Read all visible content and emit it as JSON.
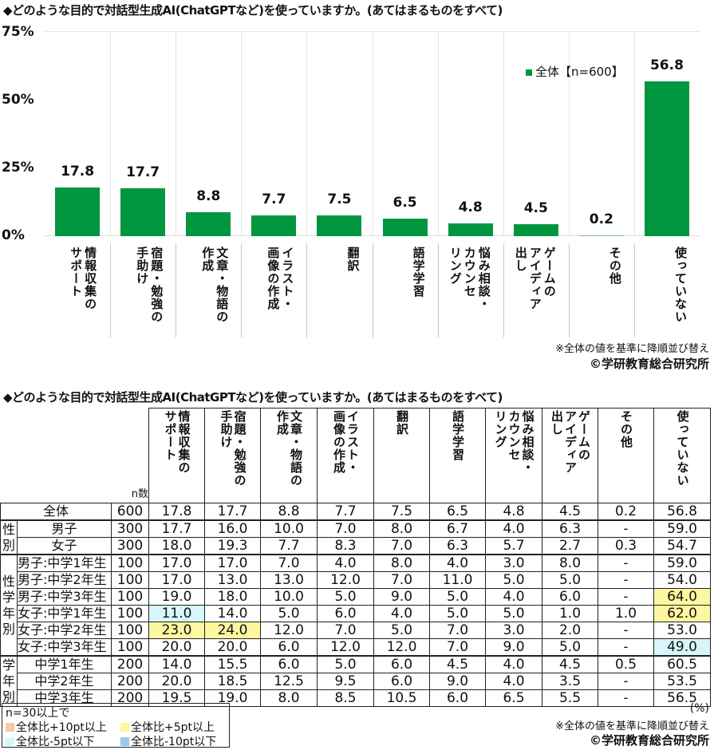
{
  "chart": {
    "title": "◆どのような目的で対話型生成AI(ChatGPTなど)を使っていますか。(あてはまるものをすべて)",
    "yticks": [
      "75%",
      "50%",
      "25%",
      "0%"
    ],
    "legend": "全体【n=600】",
    "note": "※全体の値を基準に降順並び替え",
    "copyright": "©学研教育総合研究所",
    "bar_color": "#00963f"
  },
  "chart_data": {
    "type": "bar",
    "title": "◆どのような目的で対話型生成AI(ChatGPTなど)を使っていますか。(あてはまるものをすべて)",
    "categories": [
      "情報収集のサポート",
      "宿題・勉強の手助け",
      "文章・物語の作成",
      "イラスト・画像の作成",
      "翻訳",
      "語学学習",
      "悩み相談・カウンセリング",
      "ゲームのアイディア出し",
      "その他",
      "使っていない"
    ],
    "series": [
      {
        "name": "全体【n=600】",
        "values": [
          17.8,
          17.7,
          8.8,
          7.7,
          7.5,
          6.5,
          4.8,
          4.5,
          0.2,
          56.8
        ]
      }
    ],
    "xlabel": "",
    "ylabel": "",
    "ylim": [
      0,
      75
    ],
    "yticks": [
      0,
      25,
      50,
      75
    ],
    "grid": true,
    "legend_position": "upper right"
  },
  "categories_vertical": [
    "情報収集の\nサポート",
    "宿題・勉強の\n手助け",
    "文章・物語の\n作成",
    "イラスト・\n画像の作成",
    "翻訳",
    "語学学習",
    "悩み相談・\nカウンセ\nリング",
    "ゲームの\nアイディア\n出し",
    "その他",
    "使っていない"
  ],
  "table": {
    "title": "◆どのような目的で対話型生成AI(ChatGPTなど)を使っていますか。(あてはまるものをすべて)",
    "n_label": "n数",
    "unit": "(%)",
    "note": "※全体の値を基準に降順並び替え",
    "copyright": "©学研教育総合研究所",
    "groups": {
      "sex": "性\n別",
      "sexgrade": "性\n学\n年\n別",
      "grade": "学\n年\n別"
    },
    "rows": [
      {
        "label": "全体",
        "n": "600",
        "values": [
          "17.8",
          "17.7",
          "8.8",
          "7.7",
          "7.5",
          "6.5",
          "4.8",
          "4.5",
          "0.2",
          "56.8"
        ],
        "hl": [
          "",
          "",
          "",
          "",
          "",
          "",
          "",
          "",
          "",
          ""
        ]
      },
      {
        "label": "男子",
        "n": "300",
        "values": [
          "17.7",
          "16.0",
          "10.0",
          "7.0",
          "8.0",
          "6.7",
          "4.0",
          "6.3",
          "-",
          "59.0"
        ],
        "hl": [
          "",
          "",
          "",
          "",
          "",
          "",
          "",
          "",
          "",
          ""
        ]
      },
      {
        "label": "女子",
        "n": "300",
        "values": [
          "18.0",
          "19.3",
          "7.7",
          "8.3",
          "7.0",
          "6.3",
          "5.7",
          "2.7",
          "0.3",
          "54.7"
        ],
        "hl": [
          "",
          "",
          "",
          "",
          "",
          "",
          "",
          "",
          "",
          ""
        ]
      },
      {
        "label": "男子:中学1年生",
        "n": "100",
        "values": [
          "17.0",
          "17.0",
          "7.0",
          "4.0",
          "8.0",
          "4.0",
          "3.0",
          "8.0",
          "-",
          "59.0"
        ],
        "hl": [
          "",
          "",
          "",
          "",
          "",
          "",
          "",
          "",
          "",
          ""
        ]
      },
      {
        "label": "男子:中学2年生",
        "n": "100",
        "values": [
          "17.0",
          "13.0",
          "13.0",
          "12.0",
          "7.0",
          "11.0",
          "5.0",
          "5.0",
          "-",
          "54.0"
        ],
        "hl": [
          "",
          "",
          "",
          "",
          "",
          "",
          "",
          "",
          "",
          ""
        ]
      },
      {
        "label": "男子:中学3年生",
        "n": "100",
        "values": [
          "19.0",
          "18.0",
          "10.0",
          "5.0",
          "9.0",
          "5.0",
          "4.0",
          "6.0",
          "-",
          "64.0"
        ],
        "hl": [
          "",
          "",
          "",
          "",
          "",
          "",
          "",
          "",
          "",
          "y"
        ]
      },
      {
        "label": "女子:中学1年生",
        "n": "100",
        "values": [
          "11.0",
          "14.0",
          "5.0",
          "6.0",
          "4.0",
          "5.0",
          "5.0",
          "1.0",
          "1.0",
          "62.0"
        ],
        "hl": [
          "c",
          "",
          "",
          "",
          "",
          "",
          "",
          "",
          "",
          "y"
        ]
      },
      {
        "label": "女子:中学2年生",
        "n": "100",
        "values": [
          "23.0",
          "24.0",
          "12.0",
          "7.0",
          "5.0",
          "7.0",
          "3.0",
          "2.0",
          "-",
          "53.0"
        ],
        "hl": [
          "y",
          "y",
          "",
          "",
          "",
          "",
          "",
          "",
          "",
          ""
        ]
      },
      {
        "label": "女子:中学3年生",
        "n": "100",
        "values": [
          "20.0",
          "20.0",
          "6.0",
          "12.0",
          "12.0",
          "7.0",
          "9.0",
          "5.0",
          "-",
          "49.0"
        ],
        "hl": [
          "",
          "",
          "",
          "",
          "",
          "",
          "",
          "",
          "",
          "c"
        ]
      },
      {
        "label": "中学1年生",
        "n": "200",
        "values": [
          "14.0",
          "15.5",
          "6.0",
          "5.0",
          "6.0",
          "4.5",
          "4.0",
          "4.5",
          "0.5",
          "60.5"
        ],
        "hl": [
          "",
          "",
          "",
          "",
          "",
          "",
          "",
          "",
          "",
          ""
        ]
      },
      {
        "label": "中学2年生",
        "n": "200",
        "values": [
          "20.0",
          "18.5",
          "12.5",
          "9.5",
          "6.0",
          "9.0",
          "4.0",
          "3.5",
          "-",
          "53.5"
        ],
        "hl": [
          "",
          "",
          "",
          "",
          "",
          "",
          "",
          "",
          "",
          ""
        ]
      },
      {
        "label": "中学3年生",
        "n": "200",
        "values": [
          "19.5",
          "19.0",
          "8.0",
          "8.5",
          "10.5",
          "6.0",
          "6.5",
          "5.5",
          "-",
          "56.5"
        ],
        "hl": [
          "",
          "",
          "",
          "",
          "",
          "",
          "",
          "",
          "",
          ""
        ]
      }
    ],
    "legend": {
      "heading": "n=30以上で",
      "items": [
        {
          "label": "全体比+10pt以上",
          "color": "#f9c9a0"
        },
        {
          "label": "全体比+5pt以上",
          "color": "#fff7a0"
        },
        {
          "label": "全体比-5pt以下",
          "color": "#d6f6fb"
        },
        {
          "label": "全体比-10pt以下",
          "color": "#9cc8f0"
        }
      ]
    }
  }
}
